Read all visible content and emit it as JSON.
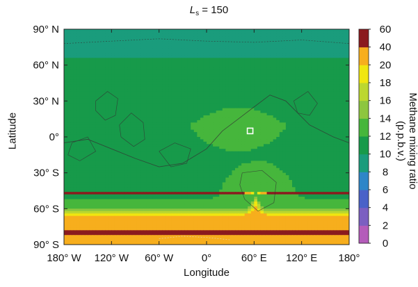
{
  "chart_data": {
    "type": "heatmap",
    "title": {
      "prefix": "L",
      "subscript": "s",
      "suffix": " = 150"
    },
    "xlabel": "Longitude",
    "ylabel": "Latitude",
    "colorbar_label": "Methane mixing ratio (p.p.b.v.)",
    "x_ticks": [
      "180° W",
      "120° W",
      "60° W",
      "0°",
      "60° E",
      "120° E",
      "180°"
    ],
    "x_tick_values": [
      -180,
      -120,
      -60,
      0,
      60,
      120,
      180
    ],
    "y_ticks": [
      "90° N",
      "60° N",
      "30° N",
      "0°",
      "30° S",
      "60° S",
      "90° S"
    ],
    "y_tick_values": [
      90,
      60,
      30,
      0,
      -30,
      -60,
      -90
    ],
    "xlim": [
      -180,
      180
    ],
    "ylim": [
      -90,
      90
    ],
    "colorbar_ticks": [
      "0",
      "2",
      "4",
      "6",
      "8",
      "10",
      "12",
      "14",
      "16",
      "18",
      "20",
      "40",
      "60"
    ],
    "colorbar_colors": [
      "#b45cba",
      "#7b5fc1",
      "#4a62c8",
      "#2e86c8",
      "#1a9c7c",
      "#179a4a",
      "#46b63c",
      "#8dc63f",
      "#bcd72f",
      "#f0e60f",
      "#f7ae1d",
      "#ef4023",
      "#d21f26"
    ],
    "colorbar_top_color": "#8b1a1e",
    "lat_profile": [
      {
        "lat": 90,
        "value": 9.2
      },
      {
        "lat": 80,
        "value": 9.4
      },
      {
        "lat": 70,
        "value": 9.6
      },
      {
        "lat": 60,
        "value": 10.4
      },
      {
        "lat": 50,
        "value": 10.8
      },
      {
        "lat": 40,
        "value": 11.0
      },
      {
        "lat": 30,
        "value": 11.2
      },
      {
        "lat": 20,
        "value": 11.5
      },
      {
        "lat": 10,
        "value": 11.8
      },
      {
        "lat": 0,
        "value": 11.6
      },
      {
        "lat": -10,
        "value": 11.2
      },
      {
        "lat": -20,
        "value": 10.8
      },
      {
        "lat": -30,
        "value": 10.4
      },
      {
        "lat": -40,
        "value": 10.8
      },
      {
        "lat": -50,
        "value": 11.4
      },
      {
        "lat": -55,
        "value": 12.4
      },
      {
        "lat": -60,
        "value": 13.5
      },
      {
        "lat": -63,
        "value": 16.5
      },
      {
        "lat": -66,
        "value": 20.0
      },
      {
        "lat": -72,
        "value": 30.0
      },
      {
        "lat": -80,
        "value": 42.0
      },
      {
        "lat": -86,
        "value": 30.0
      },
      {
        "lat": -90,
        "value": 22.0
      }
    ],
    "features": [
      {
        "name": "southern-plume",
        "lon": 62,
        "lat": -62,
        "value": 30
      },
      {
        "name": "hellas-max",
        "lon": 65,
        "lat": -40,
        "value": 13
      },
      {
        "name": "equatorial-max",
        "lon": 40,
        "lat": 5,
        "value": 12.5
      }
    ],
    "marker": {
      "lon": 55,
      "lat": 5
    }
  }
}
